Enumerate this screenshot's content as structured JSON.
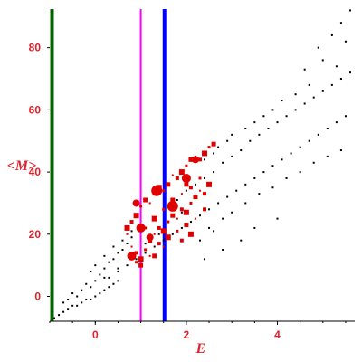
{
  "chart_data": {
    "type": "scatter",
    "title": "",
    "xlabel": "E",
    "ylabel": "<M>",
    "xlim": [
      -1,
      5.7
    ],
    "ylim": [
      -8,
      93
    ],
    "grid": false,
    "x_ticks": [
      "0",
      "2",
      "4"
    ],
    "x_tick_values": [
      0,
      2,
      4
    ],
    "y_ticks": [
      "0",
      "20",
      "40",
      "60",
      "80"
    ],
    "y_tick_values": [
      0,
      20,
      40,
      60,
      80
    ],
    "vertical_lines": [
      {
        "x": -0.95,
        "color": "#006400"
      },
      {
        "x": 1.0,
        "color": "#ff00ff"
      },
      {
        "x": 1.52,
        "color": "#0000ff"
      }
    ],
    "series": [
      {
        "color": "#000000",
        "marker": "small-dot",
        "points": [
          [
            -0.9,
            -7
          ],
          [
            -0.8,
            -6
          ],
          [
            -0.7,
            -5
          ],
          [
            -0.6,
            -4
          ],
          [
            -0.5,
            -3
          ],
          [
            -0.4,
            -3
          ],
          [
            -0.3,
            -2
          ],
          [
            -0.2,
            -1
          ],
          [
            -0.1,
            -1
          ],
          [
            0.0,
            0
          ],
          [
            0.1,
            1
          ],
          [
            0.2,
            2
          ],
          [
            0.3,
            3
          ],
          [
            0.4,
            4
          ],
          [
            0.5,
            5
          ],
          [
            -0.6,
            -1
          ],
          [
            -0.5,
            1
          ],
          [
            -0.3,
            2
          ],
          [
            -0.2,
            4
          ],
          [
            0.0,
            5
          ],
          [
            0.1,
            7
          ],
          [
            0.2,
            9
          ],
          [
            0.3,
            11
          ],
          [
            0.4,
            12
          ],
          [
            0.5,
            14
          ],
          [
            0.6,
            15
          ],
          [
            0.7,
            17
          ],
          [
            0.8,
            19
          ],
          [
            -0.1,
            8
          ],
          [
            0.0,
            10
          ],
          [
            0.2,
            13
          ],
          [
            0.4,
            16
          ],
          [
            0.6,
            18
          ],
          [
            0.8,
            21
          ],
          [
            1.0,
            23
          ],
          [
            0.3,
            6
          ],
          [
            0.5,
            8
          ],
          [
            0.7,
            10
          ],
          [
            0.9,
            12
          ],
          [
            1.1,
            14
          ],
          [
            1.3,
            16
          ],
          [
            1.5,
            18
          ],
          [
            1.7,
            20
          ],
          [
            1.9,
            22
          ],
          [
            2.1,
            24
          ],
          [
            2.3,
            26
          ],
          [
            2.5,
            28
          ],
          [
            2.7,
            30
          ],
          [
            2.9,
            32
          ],
          [
            3.1,
            34
          ],
          [
            3.3,
            36
          ],
          [
            3.5,
            38
          ],
          [
            3.7,
            40
          ],
          [
            3.9,
            42
          ],
          [
            4.1,
            44
          ],
          [
            4.3,
            46
          ],
          [
            4.5,
            48
          ],
          [
            4.7,
            50
          ],
          [
            4.9,
            52
          ],
          [
            5.1,
            54
          ],
          [
            5.3,
            56
          ],
          [
            5.5,
            58
          ],
          [
            1.8,
            31
          ],
          [
            2.0,
            34
          ],
          [
            2.2,
            36
          ],
          [
            2.4,
            38
          ],
          [
            2.6,
            40
          ],
          [
            2.8,
            43
          ],
          [
            3.0,
            45
          ],
          [
            3.2,
            47
          ],
          [
            3.4,
            50
          ],
          [
            3.6,
            52
          ],
          [
            3.8,
            54
          ],
          [
            4.0,
            56
          ],
          [
            4.2,
            58
          ],
          [
            4.4,
            60
          ],
          [
            4.6,
            62
          ],
          [
            4.8,
            64
          ],
          [
            5.0,
            66
          ],
          [
            5.2,
            68
          ],
          [
            5.4,
            70
          ],
          [
            5.6,
            72
          ],
          [
            2.5,
            22
          ],
          [
            2.8,
            25
          ],
          [
            3.0,
            27
          ],
          [
            3.3,
            30
          ],
          [
            3.6,
            33
          ],
          [
            3.9,
            35
          ],
          [
            4.2,
            38
          ],
          [
            4.5,
            40
          ],
          [
            4.8,
            43
          ],
          [
            5.1,
            45
          ],
          [
            5.4,
            47
          ],
          [
            2.3,
            18
          ],
          [
            2.6,
            21
          ],
          [
            3.2,
            18
          ],
          [
            3.5,
            22
          ],
          [
            4.0,
            25
          ],
          [
            2.8,
            15
          ],
          [
            2.4,
            12
          ],
          [
            4.9,
            80
          ],
          [
            5.2,
            84
          ],
          [
            5.4,
            88
          ],
          [
            5.6,
            92
          ],
          [
            5.0,
            76
          ],
          [
            5.3,
            74
          ],
          [
            4.6,
            73
          ],
          [
            5.5,
            82
          ],
          [
            4.4,
            65
          ],
          [
            4.7,
            68
          ],
          [
            3.9,
            60
          ],
          [
            4.1,
            63
          ],
          [
            3.5,
            56
          ],
          [
            3.7,
            58
          ],
          [
            3.0,
            52
          ],
          [
            3.3,
            54
          ],
          [
            2.7,
            48
          ],
          [
            2.9,
            50
          ],
          [
            2.4,
            44
          ],
          [
            2.6,
            46
          ],
          [
            -0.7,
            -2
          ],
          [
            -0.4,
            0
          ],
          [
            -0.1,
            3
          ],
          [
            0.2,
            6
          ],
          [
            0.5,
            9
          ],
          [
            0.8,
            13
          ],
          [
            1.1,
            17
          ],
          [
            1.4,
            20
          ],
          [
            1.6,
            24
          ],
          [
            1.9,
            27
          ]
        ]
      },
      {
        "color": "#e00000",
        "marker": "square-variable",
        "points": [
          [
            0.7,
            20
          ],
          [
            0.8,
            24
          ],
          [
            0.9,
            26
          ],
          [
            1.0,
            29
          ],
          [
            1.1,
            31
          ],
          [
            1.2,
            30
          ],
          [
            1.3,
            33
          ],
          [
            1.4,
            35
          ],
          [
            1.5,
            34
          ],
          [
            1.6,
            36
          ],
          [
            1.7,
            39
          ],
          [
            1.8,
            38
          ],
          [
            1.9,
            40
          ],
          [
            2.0,
            42
          ],
          [
            2.1,
            44
          ],
          [
            2.2,
            45
          ],
          [
            2.3,
            44
          ],
          [
            2.4,
            46
          ],
          [
            2.5,
            48
          ],
          [
            2.6,
            49
          ],
          [
            0.8,
            16
          ],
          [
            0.9,
            14
          ],
          [
            1.0,
            12
          ],
          [
            1.1,
            15
          ],
          [
            1.2,
            18
          ],
          [
            1.3,
            20
          ],
          [
            1.4,
            22
          ],
          [
            1.5,
            21
          ],
          [
            1.6,
            24
          ],
          [
            1.7,
            26
          ],
          [
            1.8,
            25
          ],
          [
            1.9,
            28
          ],
          [
            2.0,
            27
          ],
          [
            2.1,
            30
          ],
          [
            2.2,
            32
          ],
          [
            2.3,
            34
          ],
          [
            2.4,
            33
          ],
          [
            2.5,
            36
          ],
          [
            0.9,
            11
          ],
          [
            1.0,
            10
          ],
          [
            1.2,
            13
          ],
          [
            1.4,
            17
          ],
          [
            1.6,
            19
          ],
          [
            1.8,
            21
          ],
          [
            2.0,
            23
          ],
          [
            2.2,
            25
          ],
          [
            2.4,
            28
          ],
          [
            1.3,
            25
          ],
          [
            1.5,
            28
          ],
          [
            1.7,
            31
          ],
          [
            1.9,
            33
          ],
          [
            2.1,
            35
          ],
          [
            0.7,
            22
          ],
          [
            1.1,
            22
          ],
          [
            1.3,
            13
          ],
          [
            1.5,
            16
          ],
          [
            1.9,
            18
          ],
          [
            2.1,
            20
          ],
          [
            2.3,
            38
          ],
          [
            2.0,
            36
          ]
        ],
        "large_points": [
          [
            0.9,
            30
          ],
          [
            1.0,
            22
          ],
          [
            1.35,
            34
          ],
          [
            2.2,
            44
          ],
          [
            2.0,
            38
          ],
          [
            1.7,
            29
          ],
          [
            1.2,
            19
          ],
          [
            0.8,
            13
          ]
        ]
      }
    ]
  }
}
